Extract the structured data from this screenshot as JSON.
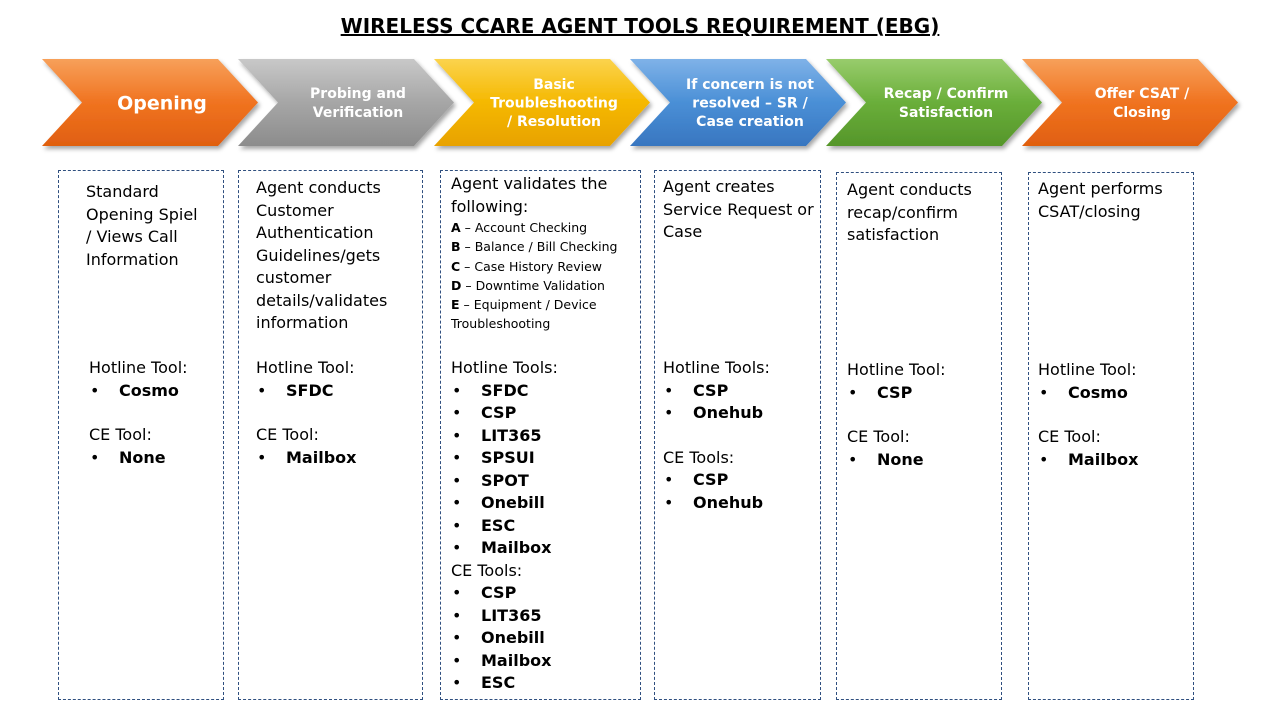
{
  "title": "WIRELESS CCARE AGENT TOOLS REQUIREMENT (EBG)",
  "colors": {
    "opening": "#f07320",
    "probing": "#a6a6a6",
    "troubleshooting": "#f5b800",
    "concern": "#4a8fd6",
    "recap": "#6aae3a",
    "closing": "#f07320",
    "box_border": "#2f4f7f"
  },
  "stages": [
    {
      "name": "opening",
      "label_lines": [
        "Opening"
      ],
      "description": [
        "Standard",
        "Opening Spiel",
        "/ Views Call",
        "Information"
      ],
      "groups": [
        {
          "label": "Hotline Tool:",
          "items": [
            "Cosmo"
          ]
        },
        {
          "label": "CE Tool:",
          "items": [
            "None"
          ]
        }
      ]
    },
    {
      "name": "probing",
      "label_lines": [
        "Probing and",
        "Verification"
      ],
      "description": [
        "Agent conducts",
        "Customer",
        "Authentication",
        "Guidelines/gets",
        "customer",
        "details/validates",
        "information"
      ],
      "groups": [
        {
          "label": "Hotline Tool:",
          "items": [
            "SFDC"
          ]
        },
        {
          "label": "CE Tool:",
          "items": [
            "Mailbox"
          ]
        }
      ]
    },
    {
      "name": "troubleshooting",
      "label_lines": [
        "Basic",
        "Troubleshooting",
        "/ Resolution"
      ],
      "description": [
        "Agent validates the",
        "following:"
      ],
      "checklist": [
        {
          "key": "A",
          "text": " – Account  Checking"
        },
        {
          "key": "B",
          "text": " – Balance / Bill Checking"
        },
        {
          "key": "C",
          "text": " – Case History Review"
        },
        {
          "key": "D",
          "text": " – Downtime  Validation"
        },
        {
          "key": "E",
          "text": " – Equipment  / Device"
        },
        {
          "key": "",
          "text": "Troubleshooting"
        }
      ],
      "groups": [
        {
          "label": "Hotline Tools:",
          "items": [
            "SFDC",
            "CSP",
            "LIT365",
            "SPSUI",
            "SPOT",
            "Onebill",
            "ESC",
            "Mailbox"
          ]
        },
        {
          "label": "CE Tools:",
          "items": [
            "CSP",
            "LIT365",
            "Onebill",
            "Mailbox",
            "ESC"
          ]
        }
      ]
    },
    {
      "name": "concern",
      "label_lines": [
        "If concern is not",
        "resolved – SR /",
        "Case creation"
      ],
      "description": [
        "Agent creates",
        "Service Request or",
        "Case"
      ],
      "groups": [
        {
          "label": "Hotline Tools:",
          "items": [
            "CSP",
            "Onehub"
          ]
        },
        {
          "label": "CE Tools:",
          "items": [
            "CSP",
            "Onehub"
          ]
        }
      ]
    },
    {
      "name": "recap",
      "label_lines": [
        "Recap / Confirm",
        "Satisfaction"
      ],
      "description": [
        "Agent conducts",
        "recap/confirm",
        "satisfaction"
      ],
      "groups": [
        {
          "label": "Hotline Tool:",
          "items": [
            "CSP"
          ]
        },
        {
          "label": "CE Tool:",
          "items": [
            "None"
          ]
        }
      ]
    },
    {
      "name": "closing",
      "label_lines": [
        "Offer CSAT /",
        "Closing"
      ],
      "description": [
        "Agent performs",
        "CSAT/closing"
      ],
      "groups": [
        {
          "label": "Hotline Tool:",
          "items": [
            "Cosmo"
          ]
        },
        {
          "label": "CE Tool:",
          "items": [
            "Mailbox"
          ]
        }
      ]
    }
  ]
}
